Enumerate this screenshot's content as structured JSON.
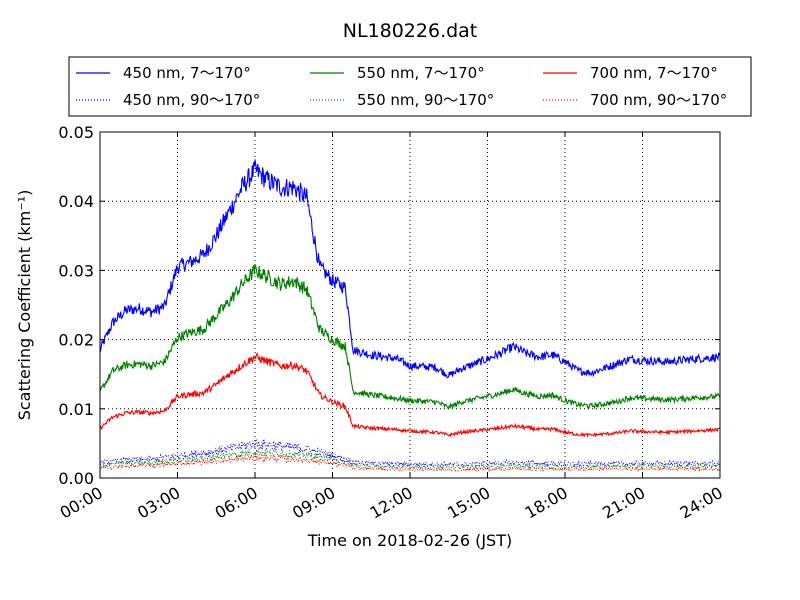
{
  "chart_data": {
    "type": "line",
    "title": "NL180226.dat",
    "xlabel": "Time on 2018-02-26 (JST)",
    "ylabel": "Scattering Coefficient (km⁻¹)",
    "xlim": [
      0,
      24
    ],
    "ylim": [
      0,
      0.05
    ],
    "grid": true,
    "legend_placement": "top, above plot",
    "x_tick_labels": [
      "00:00",
      "03:00",
      "06:00",
      "09:00",
      "12:00",
      "15:00",
      "18:00",
      "21:00",
      "24:00"
    ],
    "y_tick_labels": [
      "0.00",
      "0.01",
      "0.02",
      "0.03",
      "0.04",
      "0.05"
    ],
    "series": [
      {
        "name": "450 nm, 7～170°",
        "color": "#0000ff",
        "style": "solid",
        "points": [
          [
            0.0,
            0.0185
          ],
          [
            0.5,
            0.0225
          ],
          [
            1.0,
            0.0242
          ],
          [
            1.5,
            0.0245
          ],
          [
            2.0,
            0.024
          ],
          [
            2.5,
            0.0248
          ],
          [
            3.0,
            0.0305
          ],
          [
            3.5,
            0.0312
          ],
          [
            4.0,
            0.0322
          ],
          [
            4.5,
            0.035
          ],
          [
            5.0,
            0.0385
          ],
          [
            5.5,
            0.042
          ],
          [
            6.0,
            0.0445
          ],
          [
            6.5,
            0.043
          ],
          [
            7.0,
            0.042
          ],
          [
            7.5,
            0.042
          ],
          [
            8.0,
            0.0405
          ],
          [
            8.5,
            0.0305
          ],
          [
            9.0,
            0.0285
          ],
          [
            9.5,
            0.0275
          ],
          [
            9.8,
            0.0185
          ],
          [
            10.5,
            0.0178
          ],
          [
            11.5,
            0.0172
          ],
          [
            12.0,
            0.0162
          ],
          [
            13.0,
            0.016
          ],
          [
            13.5,
            0.0148
          ],
          [
            14.0,
            0.0158
          ],
          [
            15.0,
            0.0172
          ],
          [
            15.5,
            0.018
          ],
          [
            16.0,
            0.019
          ],
          [
            16.5,
            0.018
          ],
          [
            17.0,
            0.0175
          ],
          [
            17.5,
            0.0178
          ],
          [
            18.0,
            0.0168
          ],
          [
            18.5,
            0.0155
          ],
          [
            19.0,
            0.0152
          ],
          [
            20.0,
            0.0165
          ],
          [
            20.5,
            0.0172
          ],
          [
            21.0,
            0.017
          ],
          [
            22.0,
            0.0168
          ],
          [
            23.0,
            0.0172
          ],
          [
            24.0,
            0.0175
          ]
        ]
      },
      {
        "name": "550 nm, 7～170°",
        "color": "#008000",
        "style": "solid",
        "points": [
          [
            0.0,
            0.0125
          ],
          [
            0.5,
            0.0155
          ],
          [
            1.0,
            0.0163
          ],
          [
            1.5,
            0.0165
          ],
          [
            2.0,
            0.0162
          ],
          [
            2.5,
            0.0168
          ],
          [
            3.0,
            0.0203
          ],
          [
            3.5,
            0.021
          ],
          [
            4.0,
            0.0215
          ],
          [
            4.5,
            0.0235
          ],
          [
            5.0,
            0.0255
          ],
          [
            5.5,
            0.028
          ],
          [
            6.0,
            0.03
          ],
          [
            6.5,
            0.029
          ],
          [
            7.0,
            0.028
          ],
          [
            7.5,
            0.0285
          ],
          [
            8.0,
            0.0272
          ],
          [
            8.5,
            0.0215
          ],
          [
            9.0,
            0.02
          ],
          [
            9.5,
            0.019
          ],
          [
            9.8,
            0.0125
          ],
          [
            10.5,
            0.012
          ],
          [
            11.5,
            0.0115
          ],
          [
            12.0,
            0.0112
          ],
          [
            13.0,
            0.011
          ],
          [
            13.5,
            0.0102
          ],
          [
            14.0,
            0.011
          ],
          [
            15.0,
            0.0118
          ],
          [
            15.5,
            0.0122
          ],
          [
            16.0,
            0.0128
          ],
          [
            16.5,
            0.0122
          ],
          [
            17.0,
            0.0118
          ],
          [
            17.5,
            0.012
          ],
          [
            18.0,
            0.0112
          ],
          [
            18.5,
            0.0106
          ],
          [
            19.0,
            0.0104
          ],
          [
            20.0,
            0.011
          ],
          [
            20.5,
            0.0116
          ],
          [
            21.0,
            0.0115
          ],
          [
            22.0,
            0.0113
          ],
          [
            23.0,
            0.0116
          ],
          [
            24.0,
            0.0118
          ]
        ]
      },
      {
        "name": "700 nm, 7～170°",
        "color": "#ff0000",
        "style": "solid",
        "points": [
          [
            0.0,
            0.0072
          ],
          [
            0.5,
            0.0088
          ],
          [
            1.0,
            0.0094
          ],
          [
            1.5,
            0.0095
          ],
          [
            2.0,
            0.0094
          ],
          [
            2.5,
            0.0097
          ],
          [
            3.0,
            0.0118
          ],
          [
            3.5,
            0.0121
          ],
          [
            4.0,
            0.0123
          ],
          [
            4.5,
            0.0135
          ],
          [
            5.0,
            0.015
          ],
          [
            5.5,
            0.0163
          ],
          [
            6.0,
            0.0175
          ],
          [
            6.5,
            0.0168
          ],
          [
            7.0,
            0.0162
          ],
          [
            7.5,
            0.0163
          ],
          [
            8.0,
            0.0155
          ],
          [
            8.5,
            0.012
          ],
          [
            9.0,
            0.011
          ],
          [
            9.5,
            0.0103
          ],
          [
            9.8,
            0.0075
          ],
          [
            10.5,
            0.0072
          ],
          [
            11.5,
            0.007
          ],
          [
            12.0,
            0.0068
          ],
          [
            13.0,
            0.0066
          ],
          [
            13.5,
            0.0062
          ],
          [
            14.0,
            0.0066
          ],
          [
            15.0,
            0.007
          ],
          [
            15.5,
            0.0072
          ],
          [
            16.0,
            0.0075
          ],
          [
            16.5,
            0.0073
          ],
          [
            17.0,
            0.007
          ],
          [
            17.5,
            0.0071
          ],
          [
            18.0,
            0.0066
          ],
          [
            18.5,
            0.0063
          ],
          [
            19.0,
            0.0062
          ],
          [
            20.0,
            0.0065
          ],
          [
            20.5,
            0.0068
          ],
          [
            21.0,
            0.0067
          ],
          [
            22.0,
            0.0066
          ],
          [
            23.0,
            0.0068
          ],
          [
            24.0,
            0.007
          ]
        ]
      },
      {
        "name": "450 nm, 90～170°",
        "color": "#0000ff",
        "style": "dotted",
        "points": [
          [
            0.0,
            0.0022
          ],
          [
            1.0,
            0.0026
          ],
          [
            2.0,
            0.0027
          ],
          [
            3.0,
            0.0032
          ],
          [
            4.0,
            0.0036
          ],
          [
            5.0,
            0.0042
          ],
          [
            6.0,
            0.005
          ],
          [
            7.0,
            0.0046
          ],
          [
            8.0,
            0.0042
          ],
          [
            9.0,
            0.0032
          ],
          [
            10.0,
            0.0022
          ],
          [
            12.0,
            0.002
          ],
          [
            14.0,
            0.002
          ],
          [
            16.0,
            0.0022
          ],
          [
            18.0,
            0.002
          ],
          [
            20.0,
            0.0021
          ],
          [
            22.0,
            0.0021
          ],
          [
            24.0,
            0.0021
          ]
        ]
      },
      {
        "name": "550 nm, 90～170°",
        "color": "#008000",
        "style": "dotted",
        "points": [
          [
            0.0,
            0.0018
          ],
          [
            1.0,
            0.0021
          ],
          [
            2.0,
            0.0022
          ],
          [
            3.0,
            0.0026
          ],
          [
            4.0,
            0.0028
          ],
          [
            5.0,
            0.0033
          ],
          [
            6.0,
            0.0038
          ],
          [
            7.0,
            0.0035
          ],
          [
            8.0,
            0.0033
          ],
          [
            9.0,
            0.0026
          ],
          [
            10.0,
            0.0018
          ],
          [
            12.0,
            0.0016
          ],
          [
            14.0,
            0.0016
          ],
          [
            16.0,
            0.0017
          ],
          [
            18.0,
            0.0016
          ],
          [
            20.0,
            0.0017
          ],
          [
            22.0,
            0.0017
          ],
          [
            24.0,
            0.0017
          ]
        ]
      },
      {
        "name": "700 nm, 90～170°",
        "color": "#ff0000",
        "style": "dotted",
        "points": [
          [
            0.0,
            0.0014
          ],
          [
            1.0,
            0.0017
          ],
          [
            2.0,
            0.0018
          ],
          [
            3.0,
            0.0021
          ],
          [
            4.0,
            0.0023
          ],
          [
            5.0,
            0.0026
          ],
          [
            6.0,
            0.003
          ],
          [
            7.0,
            0.0028
          ],
          [
            8.0,
            0.0026
          ],
          [
            9.0,
            0.0021
          ],
          [
            10.0,
            0.0014
          ],
          [
            12.0,
            0.0012
          ],
          [
            14.0,
            0.0012
          ],
          [
            16.0,
            0.0013
          ],
          [
            18.0,
            0.0012
          ],
          [
            20.0,
            0.0013
          ],
          [
            22.0,
            0.0013
          ],
          [
            24.0,
            0.0013
          ]
        ]
      }
    ]
  }
}
